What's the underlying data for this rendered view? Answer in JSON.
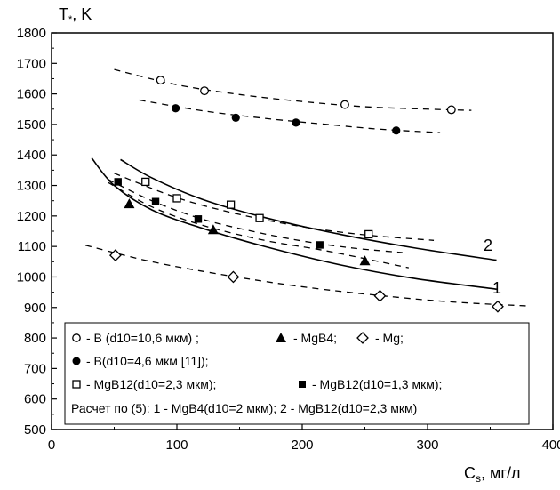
{
  "chart_data": {
    "type": "scatter",
    "ylabel": "T*, K",
    "xlabel": "Cs, мг/л",
    "xlim": [
      0,
      400
    ],
    "ylim": [
      500,
      1800
    ],
    "x_ticks": [
      0,
      100,
      200,
      300,
      400
    ],
    "y_ticks": [
      500,
      600,
      700,
      800,
      900,
      1000,
      1100,
      1200,
      1300,
      1400,
      1500,
      1600,
      1700,
      1800
    ],
    "grid": false,
    "legend_position": "bottom-left inside",
    "series": [
      {
        "name": "B (d10=10,6 мкм)",
        "marker": "open-circle",
        "points": [
          [
            87,
            1645
          ],
          [
            122,
            1610
          ],
          [
            234,
            1565
          ],
          [
            319,
            1548
          ]
        ],
        "trend": [
          [
            50,
            1680
          ],
          [
            100,
            1630
          ],
          [
            150,
            1598
          ],
          [
            200,
            1575
          ],
          [
            250,
            1558
          ],
          [
            300,
            1550
          ],
          [
            335,
            1546
          ]
        ]
      },
      {
        "name": "B(d10=4,6 мкм [11])",
        "marker": "filled-circle",
        "points": [
          [
            99,
            1553
          ],
          [
            147,
            1522
          ],
          [
            195,
            1506
          ],
          [
            275,
            1480
          ]
        ],
        "trend": [
          [
            70,
            1580
          ],
          [
            120,
            1545
          ],
          [
            170,
            1520
          ],
          [
            220,
            1500
          ],
          [
            260,
            1485
          ],
          [
            310,
            1473
          ]
        ]
      },
      {
        "name": "MgB4",
        "marker": "filled-triangle",
        "points": [
          [
            62,
            1240
          ],
          [
            129,
            1155
          ],
          [
            250,
            1053
          ]
        ],
        "trend": [
          [
            45,
            1310
          ],
          [
            80,
            1230
          ],
          [
            120,
            1170
          ],
          [
            170,
            1120
          ],
          [
            220,
            1085
          ],
          [
            285,
            1030
          ]
        ]
      },
      {
        "name": "Mg",
        "marker": "open-diamond",
        "points": [
          [
            51,
            1071
          ],
          [
            145,
            1000
          ],
          [
            262,
            938
          ],
          [
            356,
            903
          ]
        ],
        "trend": [
          [
            27,
            1104
          ],
          [
            80,
            1050
          ],
          [
            140,
            1005
          ],
          [
            200,
            968
          ],
          [
            260,
            940
          ],
          [
            320,
            918
          ],
          [
            380,
            905
          ]
        ]
      },
      {
        "name": "MgB12(d10=2,3 мкм)",
        "marker": "open-square",
        "points": [
          [
            75,
            1312
          ],
          [
            100,
            1258
          ],
          [
            143,
            1237
          ],
          [
            166,
            1193
          ],
          [
            253,
            1140
          ]
        ],
        "trend": [
          [
            50,
            1340
          ],
          [
            100,
            1260
          ],
          [
            150,
            1205
          ],
          [
            200,
            1165
          ],
          [
            250,
            1138
          ],
          [
            305,
            1120
          ]
        ]
      },
      {
        "name": "MgB12(d10=1,3 мкм)",
        "marker": "filled-square",
        "points": [
          [
            53,
            1312
          ],
          [
            83,
            1247
          ],
          [
            117,
            1190
          ],
          [
            214,
            1105
          ]
        ],
        "trend": [
          [
            45,
            1320
          ],
          [
            80,
            1250
          ],
          [
            120,
            1190
          ],
          [
            160,
            1150
          ],
          [
            200,
            1118
          ],
          [
            240,
            1095
          ],
          [
            280,
            1080
          ]
        ]
      }
    ],
    "calculated_curves": [
      {
        "id": "1",
        "label": "1 - MgB4(d10=2 мкм)",
        "points": [
          [
            32,
            1390
          ],
          [
            50,
            1300
          ],
          [
            80,
            1220
          ],
          [
            120,
            1160
          ],
          [
            170,
            1100
          ],
          [
            230,
            1040
          ],
          [
            290,
            995
          ],
          [
            355,
            960
          ]
        ]
      },
      {
        "id": "2",
        "label": "2 - MgB12(d10=2,3 мкм)",
        "points": [
          [
            55,
            1385
          ],
          [
            80,
            1325
          ],
          [
            120,
            1255
          ],
          [
            170,
            1195
          ],
          [
            230,
            1140
          ],
          [
            290,
            1095
          ],
          [
            355,
            1055
          ]
        ]
      }
    ]
  },
  "legend": {
    "row1": {
      "b_coarse": "- B (d10=10,6 мкм) ;",
      "mgb4": "- MgB4;",
      "mg": "- Mg;"
    },
    "row2": {
      "b_fine": "- B(d10=4,6 мкм [11]);"
    },
    "row3": {
      "mgb12_23": "- MgB12(d10=2,3 мкм);",
      "mgb12_13": "- MgB12(d10=1,3 мкм);"
    },
    "row4": {
      "calc": "Расчет по (5): 1 - MgB4(d10=2 мкм); 2 - MgB12(d10=2,3 мкм)"
    }
  },
  "curve_labels": {
    "one": "1",
    "two": "2"
  }
}
